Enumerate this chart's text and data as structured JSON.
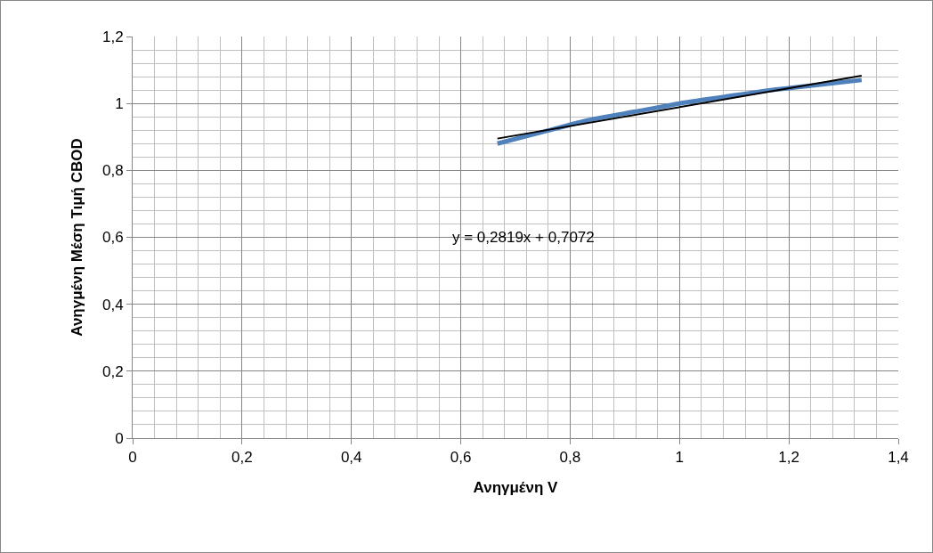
{
  "chart_data": {
    "type": "line",
    "xlabel": "Ανηγμένη V",
    "ylabel": "Ανηγμένη Μέση Τιμή CBOD",
    "series": [
      {
        "color": "#4f81bd",
        "x": [
          0.667,
          0.75,
          0.833,
          0.917,
          1.0,
          1.083,
          1.167,
          1.25,
          1.333
        ],
        "values": [
          0.88,
          0.915,
          0.95,
          0.975,
          1.0,
          1.02,
          1.04,
          1.055,
          1.07
        ]
      },
      {
        "color": "#000000",
        "x": [
          0.667,
          1.333
        ],
        "values": [
          0.895,
          1.083
        ]
      }
    ],
    "annotations": [
      "y = 0,2819x + 0,7072"
    ],
    "xlim": [
      0,
      1.4
    ],
    "ylim": [
      0,
      1.2
    ],
    "xticks": [
      0,
      {
        "value": 0.2,
        "label": "0,2"
      },
      {
        "value": 0.4,
        "label": "0,4"
      },
      {
        "value": 0.6,
        "label": "0,6"
      },
      {
        "value": 0.8,
        "label": "0,8"
      },
      1,
      {
        "value": 1.2,
        "label": "1,2"
      },
      {
        "value": 1.4,
        "label": "1,4"
      }
    ],
    "yticks": [
      0,
      {
        "value": 0.2,
        "label": "0,2"
      },
      {
        "value": 0.4,
        "label": "0,4"
      },
      {
        "value": 0.6,
        "label": "0,6"
      },
      {
        "value": 0.8,
        "label": "0,8"
      },
      1,
      {
        "value": 1.2,
        "label": "1,2"
      }
    ],
    "grid": true,
    "marker": "none"
  }
}
